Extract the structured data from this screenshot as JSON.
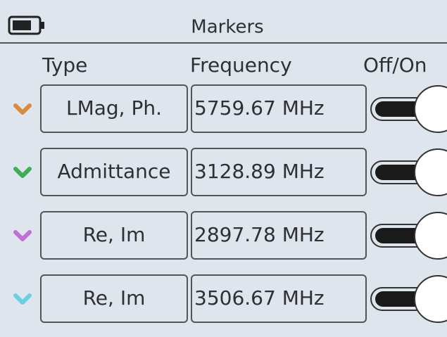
{
  "header": {
    "title": "Markers"
  },
  "columns": [
    "Type",
    "Frequency",
    "Off/On"
  ],
  "rows": [
    {
      "type": "LMag, Ph.",
      "frequency": "5759.67 MHz",
      "color": "#d98a3c"
    },
    {
      "type": "Admittance",
      "frequency": "3128.89 MHz",
      "color": "#3fae5a"
    },
    {
      "type": "Re, Im",
      "frequency": "2897.78 MHz",
      "color": "#c070d8"
    },
    {
      "type": "Re, Im",
      "frequency": "3506.67 MHz",
      "color": "#6ccfe0"
    }
  ]
}
